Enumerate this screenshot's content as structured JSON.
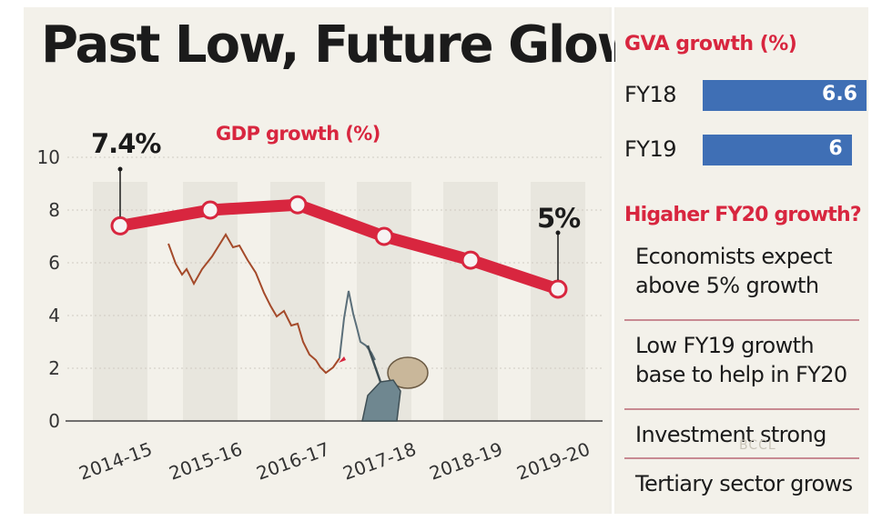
{
  "title": "Past Low, Future Glow",
  "chart_data": [
    {
      "type": "line",
      "title": "GDP growth (%)",
      "categories": [
        "2014-15",
        "2015-16",
        "2016-17",
        "2017-18",
        "2018-19",
        "2019-20"
      ],
      "series": [
        {
          "name": "GDP growth (%)",
          "values": [
            7.4,
            8.0,
            8.2,
            7.0,
            6.1,
            5.0
          ]
        }
      ],
      "callouts": [
        {
          "category": "2014-15",
          "label": "7.4%"
        },
        {
          "category": "2019-20",
          "label": "5%"
        }
      ],
      "yticks": [
        "10",
        "8",
        "6",
        "4",
        "2",
        "0"
      ],
      "ylim": [
        0,
        10
      ],
      "colors": {
        "line": "#d8263f",
        "marker_fill": "#f6f3f3"
      }
    },
    {
      "type": "bar",
      "title": "GVA growth (%)",
      "categories": [
        "FY18",
        "FY19"
      ],
      "values": [
        6.6,
        6
      ],
      "value_labels": [
        "6.6",
        "6"
      ],
      "colors": {
        "bar": "#3f6fb5"
      }
    }
  ],
  "sidebar": {
    "fy20_title": "Higaher FY20 growth?",
    "points": [
      "Economists expect above 5% growth",
      "Low FY19 growth base to help in FY20",
      "Investment strong",
      "Tertiary sector grows"
    ]
  },
  "watermark": "BCCL"
}
